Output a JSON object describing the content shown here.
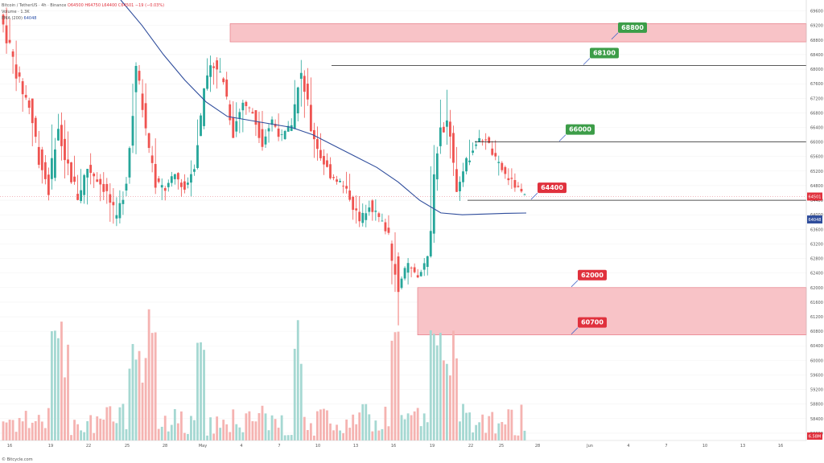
{
  "legend": {
    "line1_symbol": "Bitcoin / TetherUS · 4h · Binance",
    "line1_open": "O64500",
    "line1_high": "H64750",
    "line1_low": "L64400",
    "line1_close": "C64501",
    "line1_change": "−19 (−0.03%)",
    "line2": "Volume · 1.3K",
    "line3_label": "EMA (200)",
    "line3_value": "64048"
  },
  "footer": "© Bitcycle.com",
  "colors": {
    "up": "#26a69a",
    "down": "#ef5350",
    "ema": "#2f4d9c",
    "zone": "#f8c3c7",
    "green_label": "#3c9d48",
    "red_label": "#e0313d",
    "price_line": "#222222"
  },
  "chart_data": {
    "type": "candlestick",
    "timeframe": "4h",
    "x_tick_labels": [
      "16",
      "19",
      "22",
      "25",
      "28",
      "May",
      "4",
      "7",
      "10",
      "13",
      "16",
      "19",
      "22",
      "25",
      "28",
      "Jun",
      "4",
      "7",
      "10",
      "13",
      "16"
    ],
    "y_tick_labels": [
      "69600",
      "69200",
      "68800",
      "68400",
      "68000",
      "67600",
      "67200",
      "66800",
      "66400",
      "66000",
      "65600",
      "65200",
      "64800",
      "64400",
      "64000",
      "63600",
      "63200",
      "62800",
      "62400",
      "62000",
      "61600",
      "61200",
      "60800",
      "60400",
      "60000",
      "59600",
      "59200",
      "58800",
      "58400",
      "58000"
    ],
    "ylim": [
      57800,
      69900
    ],
    "current_price": 64501,
    "current_price_label": "64501",
    "ema_200_value": 64048,
    "ema_200_label": "64048",
    "bottom_badge": "6.58M",
    "price_ohlc_path": [
      [
        69500,
        69900,
        68100,
        68600
      ],
      [
        68600,
        69000,
        67300,
        67600
      ],
      [
        67600,
        68300,
        66700,
        67000
      ],
      [
        67000,
        67200,
        65200,
        65600
      ],
      [
        65600,
        66000,
        64300,
        64700
      ],
      [
        64700,
        66900,
        64500,
        66500
      ],
      [
        66500,
        66900,
        64800,
        65300
      ],
      [
        65300,
        65900,
        64200,
        64500
      ],
      [
        64500,
        65600,
        63800,
        65300
      ],
      [
        65300,
        65800,
        64600,
        65000
      ],
      [
        65000,
        65300,
        64200,
        64600
      ],
      [
        64600,
        65100,
        63500,
        63800
      ],
      [
        63800,
        65200,
        63500,
        65000
      ],
      [
        65000,
        68400,
        64800,
        68000
      ],
      [
        68000,
        68300,
        66100,
        66400
      ],
      [
        66400,
        66800,
        64500,
        64900
      ],
      [
        64900,
        65200,
        64300,
        64700
      ],
      [
        64700,
        65300,
        64500,
        65100
      ],
      [
        65100,
        65200,
        64400,
        64700
      ],
      [
        64700,
        65600,
        64300,
        65400
      ],
      [
        65400,
        67600,
        65200,
        67400
      ],
      [
        67400,
        68500,
        67100,
        68200
      ],
      [
        68200,
        68600,
        67300,
        67700
      ],
      [
        67700,
        68000,
        66100,
        66300
      ],
      [
        66300,
        67300,
        66000,
        67100
      ],
      [
        67100,
        67300,
        66600,
        66800
      ],
      [
        66800,
        67000,
        65700,
        66000
      ],
      [
        66000,
        66800,
        65800,
        66600
      ],
      [
        66600,
        66900,
        65900,
        66100
      ],
      [
        66100,
        66700,
        65900,
        66500
      ],
      [
        66500,
        68400,
        66300,
        68000
      ],
      [
        68000,
        68200,
        66200,
        66400
      ],
      [
        66400,
        66600,
        65400,
        65600
      ],
      [
        65600,
        65900,
        64900,
        65100
      ],
      [
        65100,
        65400,
        64700,
        64900
      ],
      [
        64900,
        65300,
        64300,
        64500
      ],
      [
        64500,
        64800,
        63600,
        63800
      ],
      [
        63800,
        64500,
        63600,
        64300
      ],
      [
        64300,
        64600,
        63700,
        63900
      ],
      [
        63900,
        64200,
        63300,
        63500
      ],
      [
        63500,
        63800,
        60700,
        62100
      ],
      [
        62100,
        62900,
        61900,
        62600
      ],
      [
        62600,
        62700,
        62200,
        62300
      ],
      [
        62300,
        62900,
        62200,
        62800
      ],
      [
        62800,
        66200,
        62700,
        65900
      ],
      [
        65900,
        67700,
        65600,
        66700
      ],
      [
        66700,
        67300,
        64600,
        64800
      ],
      [
        64800,
        65600,
        64300,
        65400
      ],
      [
        65400,
        66300,
        65300,
        66000
      ],
      [
        66000,
        66400,
        65700,
        66100
      ],
      [
        66100,
        66200,
        65300,
        65500
      ],
      [
        65500,
        65700,
        64900,
        65100
      ],
      [
        65100,
        65400,
        64600,
        64800
      ],
      [
        64800,
        65000,
        64400,
        64501
      ]
    ],
    "ema_200_path": [
      69900,
      69200,
      68400,
      67700,
      67100,
      66700,
      66600,
      66500,
      66400,
      66200,
      65900,
      65600,
      65300,
      64900,
      64400,
      64050,
      64000,
      64020,
      64040,
      64048
    ],
    "levels": [
      {
        "label": "68800",
        "price": 68800,
        "style": "zone",
        "zone_range": [
          68750,
          69250
        ],
        "badge": "green"
      },
      {
        "label": "68100",
        "price": 68100,
        "style": "line",
        "badge": "green"
      },
      {
        "label": "66000",
        "price": 66000,
        "style": "line",
        "badge": "green"
      },
      {
        "label": "64400",
        "price": 64400,
        "style": "line",
        "badge": "red"
      },
      {
        "label": "62000",
        "price": 62000,
        "style": "zone",
        "zone_range": [
          60700,
          62000
        ],
        "badge": "red"
      },
      {
        "label": "60700",
        "price": 60700,
        "style": "zone-bottom",
        "badge": "red"
      }
    ]
  }
}
